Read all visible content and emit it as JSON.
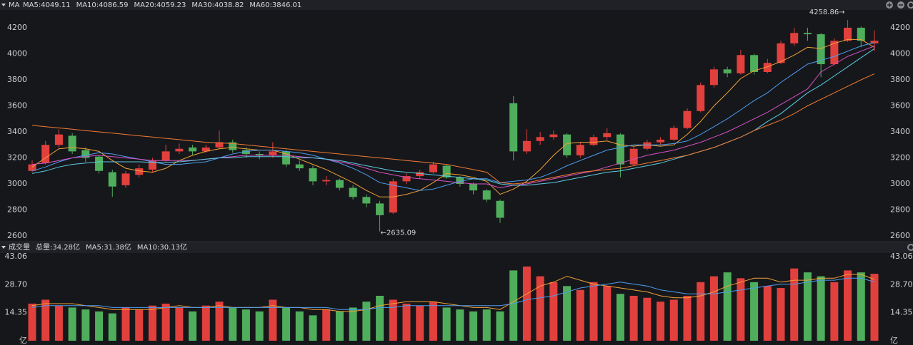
{
  "header": {
    "label": "MA"
  },
  "chart_data": [
    {
      "type": "candlestick",
      "open": [
        3100,
        3160,
        3300,
        3370,
        3260,
        3210,
        3090,
        2990,
        3070,
        3110,
        3180,
        3250,
        3280,
        3250,
        3280,
        3320,
        3260,
        3230,
        3220,
        3250,
        3150,
        3120,
        3020,
        3030,
        2970,
        2900,
        2850,
        2780,
        3020,
        3060,
        3090,
        3140,
        3050,
        3000,
        2950,
        2870,
        3620,
        3250,
        3330,
        3360,
        3380,
        3220,
        3300,
        3360,
        3380,
        3150,
        3270,
        3320,
        3340,
        3430,
        3560,
        3760,
        3880,
        3850,
        3990,
        3860,
        3930,
        4080,
        4160,
        4150,
        3920,
        4100,
        4200,
        4080
      ],
      "high": [
        3180,
        3330,
        3420,
        3390,
        3280,
        3220,
        3110,
        3100,
        3150,
        3200,
        3300,
        3310,
        3300,
        3300,
        3410,
        3340,
        3280,
        3250,
        3320,
        3260,
        3180,
        3140,
        3060,
        3040,
        2990,
        2920,
        2870,
        3040,
        3080,
        3110,
        3170,
        3150,
        3060,
        3010,
        2960,
        2880,
        3674,
        3420,
        3400,
        3410,
        3390,
        3320,
        3380,
        3430,
        3390,
        3290,
        3340,
        3360,
        3450,
        3580,
        3780,
        3900,
        3900,
        4030,
        4000,
        3960,
        4100,
        4200,
        4200,
        4160,
        4120,
        4258.86,
        4210,
        4180
      ],
      "low": [
        3090,
        3150,
        3280,
        3230,
        3170,
        3080,
        2900,
        2970,
        3050,
        3090,
        3170,
        3230,
        3220,
        3240,
        3270,
        3240,
        3200,
        3190,
        3200,
        3130,
        3100,
        2990,
        2990,
        2950,
        2880,
        2820,
        2635.09,
        2770,
        3000,
        3040,
        3080,
        3040,
        2980,
        2920,
        2860,
        2700,
        3180,
        3230,
        3300,
        3340,
        3200,
        3200,
        3290,
        3340,
        3050,
        3140,
        3260,
        3300,
        3330,
        3420,
        3550,
        3740,
        3820,
        3840,
        3840,
        3850,
        3920,
        4060,
        4100,
        3820,
        3910,
        4090,
        4050,
        4020
      ],
      "close": [
        3150,
        3300,
        3380,
        3250,
        3200,
        3100,
        2980,
        3080,
        3120,
        3180,
        3250,
        3270,
        3250,
        3280,
        3320,
        3260,
        3230,
        3220,
        3250,
        3150,
        3120,
        3020,
        3030,
        2970,
        2900,
        2850,
        2760,
        3020,
        3060,
        3090,
        3150,
        3050,
        3000,
        2950,
        2880,
        2740,
        3250,
        3330,
        3360,
        3380,
        3220,
        3300,
        3360,
        3390,
        3150,
        3270,
        3320,
        3340,
        3430,
        3560,
        3760,
        3880,
        3850,
        3990,
        3860,
        3930,
        4080,
        4160,
        4150,
        3920,
        4100,
        4200,
        4100,
        4100
      ],
      "up_color": "#e2403d",
      "down_color": "#4fae5c",
      "ylim": [
        2562,
        4331
      ],
      "yticks": [
        2600,
        2800,
        3000,
        3200,
        3400,
        3600,
        3800,
        4000,
        4200
      ],
      "grid": false,
      "max_label": "4258.86→",
      "min_label": "←2635.09",
      "series": [
        {
          "name": "MA5:4049.11",
          "color": "#f0a236",
          "values": [
            3130,
            3200,
            3270,
            3280,
            3270,
            3250,
            3180,
            3120,
            3100,
            3090,
            3120,
            3180,
            3220,
            3250,
            3270,
            3280,
            3270,
            3260,
            3260,
            3230,
            3190,
            3150,
            3110,
            3060,
            3010,
            2950,
            2900,
            2900,
            2920,
            2950,
            3010,
            3080,
            3070,
            3050,
            3020,
            2920,
            2960,
            3020,
            3110,
            3220,
            3310,
            3320,
            3320,
            3330,
            3300,
            3290,
            3300,
            3290,
            3300,
            3380,
            3480,
            3600,
            3700,
            3810,
            3870,
            3900,
            3940,
            3990,
            4050,
            4040,
            4080,
            4110,
            4110,
            4049.11
          ]
        },
        {
          "name": "MA10:4086.59",
          "color": "#4d9cf0",
          "values": [
            3100,
            3130,
            3170,
            3200,
            3220,
            3240,
            3230,
            3210,
            3190,
            3170,
            3150,
            3150,
            3160,
            3170,
            3200,
            3230,
            3250,
            3260,
            3260,
            3250,
            3240,
            3220,
            3190,
            3160,
            3120,
            3070,
            3010,
            2990,
            2970,
            2950,
            2960,
            2990,
            3020,
            3040,
            3040,
            3010,
            3020,
            3030,
            3050,
            3090,
            3140,
            3180,
            3220,
            3260,
            3280,
            3300,
            3300,
            3300,
            3310,
            3330,
            3380,
            3440,
            3500,
            3570,
            3640,
            3700,
            3780,
            3850,
            3920,
            3950,
            3980,
            4020,
            4060,
            4086.59
          ]
        },
        {
          "name": "MA20:4059.23",
          "color": "#d452c4",
          "values": [
            3150,
            3160,
            3180,
            3200,
            3210,
            3220,
            3210,
            3200,
            3190,
            3180,
            3180,
            3180,
            3180,
            3190,
            3200,
            3210,
            3220,
            3220,
            3220,
            3220,
            3210,
            3200,
            3190,
            3170,
            3150,
            3120,
            3090,
            3070,
            3050,
            3040,
            3030,
            3020,
            3010,
            3000,
            3000,
            2970,
            2990,
            3000,
            3020,
            3040,
            3060,
            3080,
            3100,
            3130,
            3160,
            3190,
            3220,
            3240,
            3260,
            3290,
            3320,
            3360,
            3400,
            3450,
            3500,
            3550,
            3610,
            3670,
            3730,
            3860,
            3920,
            3980,
            4020,
            4059.23
          ]
        },
        {
          "name": "MA30:4038.82",
          "color": "#5ccbe2",
          "values": [
            3080,
            3100,
            3130,
            3150,
            3160,
            3170,
            3170,
            3170,
            3170,
            3165,
            3165,
            3170,
            3180,
            3190,
            3200,
            3200,
            3210,
            3210,
            3210,
            3210,
            3200,
            3200,
            3190,
            3180,
            3160,
            3140,
            3120,
            3100,
            3090,
            3080,
            3070,
            3060,
            3050,
            3040,
            3030,
            3000,
            2990,
            2990,
            3000,
            3010,
            3030,
            3050,
            3070,
            3090,
            3100,
            3120,
            3140,
            3160,
            3190,
            3220,
            3250,
            3280,
            3320,
            3360,
            3410,
            3480,
            3540,
            3620,
            3700,
            3760,
            3830,
            3900,
            3970,
            4038.82
          ]
        },
        {
          "name": "MA60:3846.01",
          "color": "#f27a34",
          "values": [
            3450,
            3440,
            3430,
            3420,
            3410,
            3400,
            3390,
            3380,
            3370,
            3360,
            3350,
            3340,
            3330,
            3320,
            3315,
            3310,
            3300,
            3290,
            3280,
            3270,
            3260,
            3250,
            3240,
            3230,
            3220,
            3210,
            3200,
            3190,
            3180,
            3170,
            3160,
            3150,
            3130,
            3110,
            3090,
            3010,
            3000,
            3010,
            3030,
            3050,
            3070,
            3090,
            3100,
            3110,
            3120,
            3140,
            3160,
            3180,
            3200,
            3220,
            3250,
            3280,
            3320,
            3360,
            3410,
            3450,
            3490,
            3540,
            3600,
            3650,
            3700,
            3750,
            3800,
            3846.01
          ]
        }
      ]
    },
    {
      "type": "bar",
      "title": "成交量",
      "total_label": "总量:34.28亿",
      "values": [
        19,
        21,
        18,
        17,
        16,
        15,
        14,
        17,
        16,
        18,
        19,
        17,
        15,
        18,
        20,
        17,
        16,
        15,
        21,
        17,
        15,
        13,
        16,
        15,
        17,
        20,
        23,
        21,
        19,
        18,
        20,
        17,
        16,
        15,
        16,
        15,
        36,
        38,
        33,
        30,
        28,
        26,
        30,
        28,
        24,
        23,
        22,
        20,
        21,
        23,
        30,
        33,
        35,
        32,
        30,
        28,
        27,
        37,
        35,
        33,
        30,
        36,
        35,
        34.28
      ],
      "ylim": [
        0,
        44.9
      ],
      "yticks": [
        {
          "value": 0,
          "label": "亿"
        },
        14.35,
        {
          "value": 28.7,
          "label": "28.70"
        },
        43.06
      ],
      "series": [
        {
          "name": "MA5:31.38亿",
          "color": "#f0a236",
          "values": [
            18,
            19,
            19,
            19,
            18,
            17,
            16,
            16,
            16,
            16,
            17,
            18,
            17,
            17,
            18,
            17,
            17,
            17,
            18,
            17,
            17,
            16,
            16,
            15,
            15,
            16,
            18,
            19,
            20,
            20,
            20,
            19,
            18,
            17,
            17,
            16,
            20,
            24,
            28,
            30,
            33,
            31,
            29,
            28,
            27,
            26,
            25,
            23,
            22,
            22,
            23,
            25,
            28,
            30,
            32,
            32,
            30,
            31,
            31,
            32,
            32,
            34,
            34,
            31.38
          ]
        },
        {
          "name": "MA10:30.13亿",
          "color": "#4d9cf0",
          "values": [
            17,
            18,
            18,
            18,
            18,
            18,
            17,
            17,
            17,
            17,
            17,
            17,
            17,
            17,
            17,
            17,
            17,
            17,
            17,
            17,
            17,
            17,
            17,
            16,
            16,
            16,
            17,
            17,
            18,
            18,
            18,
            18,
            18,
            18,
            18,
            18,
            19,
            21,
            22,
            23,
            25,
            27,
            28,
            29,
            30,
            29,
            28,
            26,
            25,
            24,
            24,
            24,
            25,
            26,
            27,
            28,
            29,
            29,
            30,
            31,
            31,
            32,
            32,
            30.13
          ]
        }
      ]
    }
  ]
}
